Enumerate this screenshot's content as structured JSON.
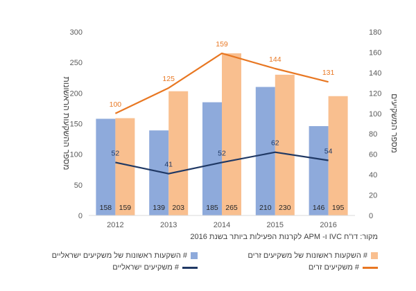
{
  "chart_data": {
    "type": "bar+line",
    "categories": [
      "2012",
      "2013",
      "2014",
      "2015",
      "2016"
    ],
    "bar_series": [
      {
        "name": "# השקעות ראשונות של משקיעים ישראליים",
        "color": "#8EAADB",
        "values": [
          158,
          139,
          185,
          210,
          146
        ]
      },
      {
        "name": "# השקעות ראשונות של משקיעים זרים",
        "color": "#F9BF8F",
        "values": [
          159,
          203,
          265,
          230,
          195
        ]
      }
    ],
    "line_series": [
      {
        "name": "# משקיעים ישראליים",
        "color": "#1F3864",
        "values": [
          52,
          41,
          52,
          62,
          54
        ]
      },
      {
        "name": "# משקיעים זרים",
        "color": "#E87722",
        "values": [
          100,
          125,
          159,
          144,
          131
        ]
      }
    ],
    "left_axis": {
      "label": "מספר ההשקעות הראשונות",
      "min": 0,
      "max": 300,
      "ticks": [
        "0",
        "50",
        "100",
        "150",
        "200",
        "250",
        "300"
      ]
    },
    "right_axis": {
      "label": "מספר המשקיעים",
      "min": 0,
      "max": 180,
      "ticks": [
        "0",
        "20",
        "40",
        "60",
        "80",
        "100",
        "120",
        "140",
        "160",
        "180"
      ]
    },
    "source": "מקור: דו\"ח IVC ו- APM לקרנות הפעילות ביותר בשנת 2016"
  }
}
